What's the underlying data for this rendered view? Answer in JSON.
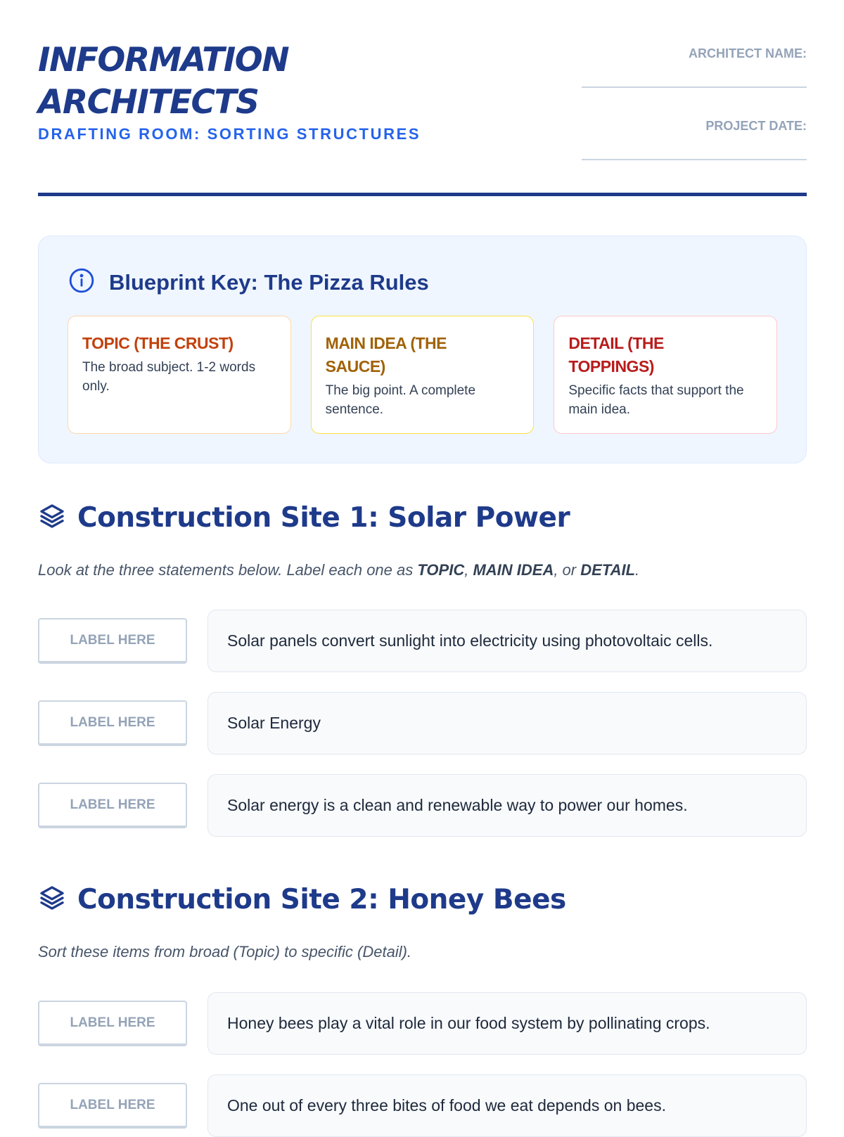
{
  "header": {
    "title_line1": "INFORMATION",
    "title_line2": "ARCHITECTS",
    "subtitle": "DRAFTING ROOM: SORTING STRUCTURES",
    "architect_name_label": "ARCHITECT NAME:",
    "project_date_label": "PROJECT DATE:"
  },
  "key": {
    "icon": "info-circle-icon",
    "title": "Blueprint Key: The Pizza Rules",
    "cards": [
      {
        "title": "TOPIC (THE CRUST)",
        "desc": "The broad subject. 1-2 words only.",
        "color": "#c2410c",
        "border": "#fed7aa"
      },
      {
        "title": "MAIN IDEA (THE SAUCE)",
        "desc": "The big point. A complete sentence.",
        "color": "#a16207",
        "border": "#fde047"
      },
      {
        "title": "DETAIL (THE TOPPINGS)",
        "desc": "Specific facts that support the main idea.",
        "color": "#b91c1c",
        "border": "#fecaca"
      }
    ]
  },
  "site1": {
    "icon": "layers-icon",
    "title": "Construction Site 1: Solar Power",
    "instr_pre": "Look at the three statements below. Label each one as ",
    "instr_b1": "TOPIC",
    "instr_sep1": ", ",
    "instr_b2": "MAIN IDEA",
    "instr_sep2": ", or ",
    "instr_b3": "DETAIL",
    "instr_end": ".",
    "rows": [
      {
        "label": "LABEL HERE",
        "text": "Solar panels convert sunlight into electricity using photovoltaic cells."
      },
      {
        "label": "LABEL HERE",
        "text": "Solar Energy"
      },
      {
        "label": "LABEL HERE",
        "text": "Solar energy is a clean and renewable way to power our homes."
      }
    ]
  },
  "site2": {
    "icon": "layers-icon",
    "title": "Construction Site 2: Honey Bees",
    "instr": "Sort these items from broad (Topic) to specific (Detail).",
    "rows": [
      {
        "label": "LABEL HERE",
        "text": "Honey bees play a vital role in our food system by pollinating crops."
      },
      {
        "label": "LABEL HERE",
        "text": "One out of every three bites of food we eat depends on bees."
      }
    ]
  }
}
